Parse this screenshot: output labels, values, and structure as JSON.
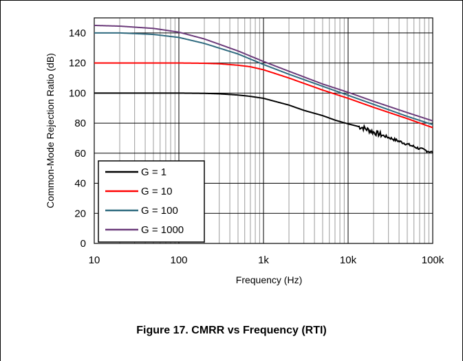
{
  "chart_data": {
    "type": "line",
    "xscale": "log",
    "xlabel": "Frequency (Hz)",
    "ylabel": "Common-Mode Rejection Ratio (dB)",
    "xlim": [
      10,
      100000
    ],
    "ylim": [
      0,
      150
    ],
    "x_ticks": [
      10,
      100,
      1000,
      10000,
      100000
    ],
    "x_tick_labels": [
      "10",
      "100",
      "1k",
      "10k",
      "100k"
    ],
    "y_ticks": [
      0,
      20,
      40,
      60,
      80,
      100,
      120,
      140
    ],
    "y_tick_labels": [
      "0",
      "20",
      "40",
      "60",
      "80",
      "100",
      "120",
      "140"
    ],
    "grid": true,
    "legend_position": "bottom-left",
    "series": [
      {
        "name": "G = 1",
        "color": "#000000",
        "noisy_above": 13000,
        "points": [
          [
            10,
            100
          ],
          [
            100,
            100
          ],
          [
            200,
            99.8
          ],
          [
            300,
            99.5
          ],
          [
            500,
            98.7
          ],
          [
            700,
            97.8
          ],
          [
            1000,
            96.5
          ],
          [
            2000,
            92
          ],
          [
            3000,
            88.5
          ],
          [
            5000,
            85
          ],
          [
            7000,
            82
          ],
          [
            10000,
            79.5
          ],
          [
            15000,
            77
          ],
          [
            20000,
            74
          ],
          [
            30000,
            70.5
          ],
          [
            50000,
            66
          ],
          [
            70000,
            63
          ],
          [
            100000,
            60.5
          ]
        ]
      },
      {
        "name": "G = 10",
        "color": "#ff0000",
        "points": [
          [
            10,
            120
          ],
          [
            100,
            120
          ],
          [
            200,
            119.8
          ],
          [
            300,
            119.5
          ],
          [
            500,
            118.5
          ],
          [
            700,
            117.5
          ],
          [
            1000,
            115.5
          ],
          [
            2000,
            110
          ],
          [
            5000,
            102
          ],
          [
            10000,
            96.5
          ],
          [
            20000,
            90.5
          ],
          [
            50000,
            83
          ],
          [
            100000,
            77
          ]
        ]
      },
      {
        "name": "G = 100",
        "color": "#2f6a7f",
        "points": [
          [
            10,
            140
          ],
          [
            20,
            140
          ],
          [
            50,
            139
          ],
          [
            100,
            137
          ],
          [
            200,
            133
          ],
          [
            500,
            126
          ],
          [
            1000,
            119
          ],
          [
            2000,
            112.5
          ],
          [
            5000,
            104.5
          ],
          [
            10000,
            98.5
          ],
          [
            20000,
            92.5
          ],
          [
            50000,
            84.5
          ],
          [
            100000,
            79
          ]
        ]
      },
      {
        "name": "G = 1000",
        "color": "#6b3a7a",
        "points": [
          [
            10,
            145
          ],
          [
            20,
            144.5
          ],
          [
            50,
            143
          ],
          [
            100,
            140.5
          ],
          [
            200,
            136
          ],
          [
            500,
            128
          ],
          [
            1000,
            121
          ],
          [
            2000,
            114.5
          ],
          [
            5000,
            106
          ],
          [
            10000,
            100.5
          ],
          [
            20000,
            94.5
          ],
          [
            50000,
            87
          ],
          [
            100000,
            81.5
          ]
        ]
      }
    ]
  },
  "caption": "Figure 17. CMRR vs Frequency (RTI)"
}
